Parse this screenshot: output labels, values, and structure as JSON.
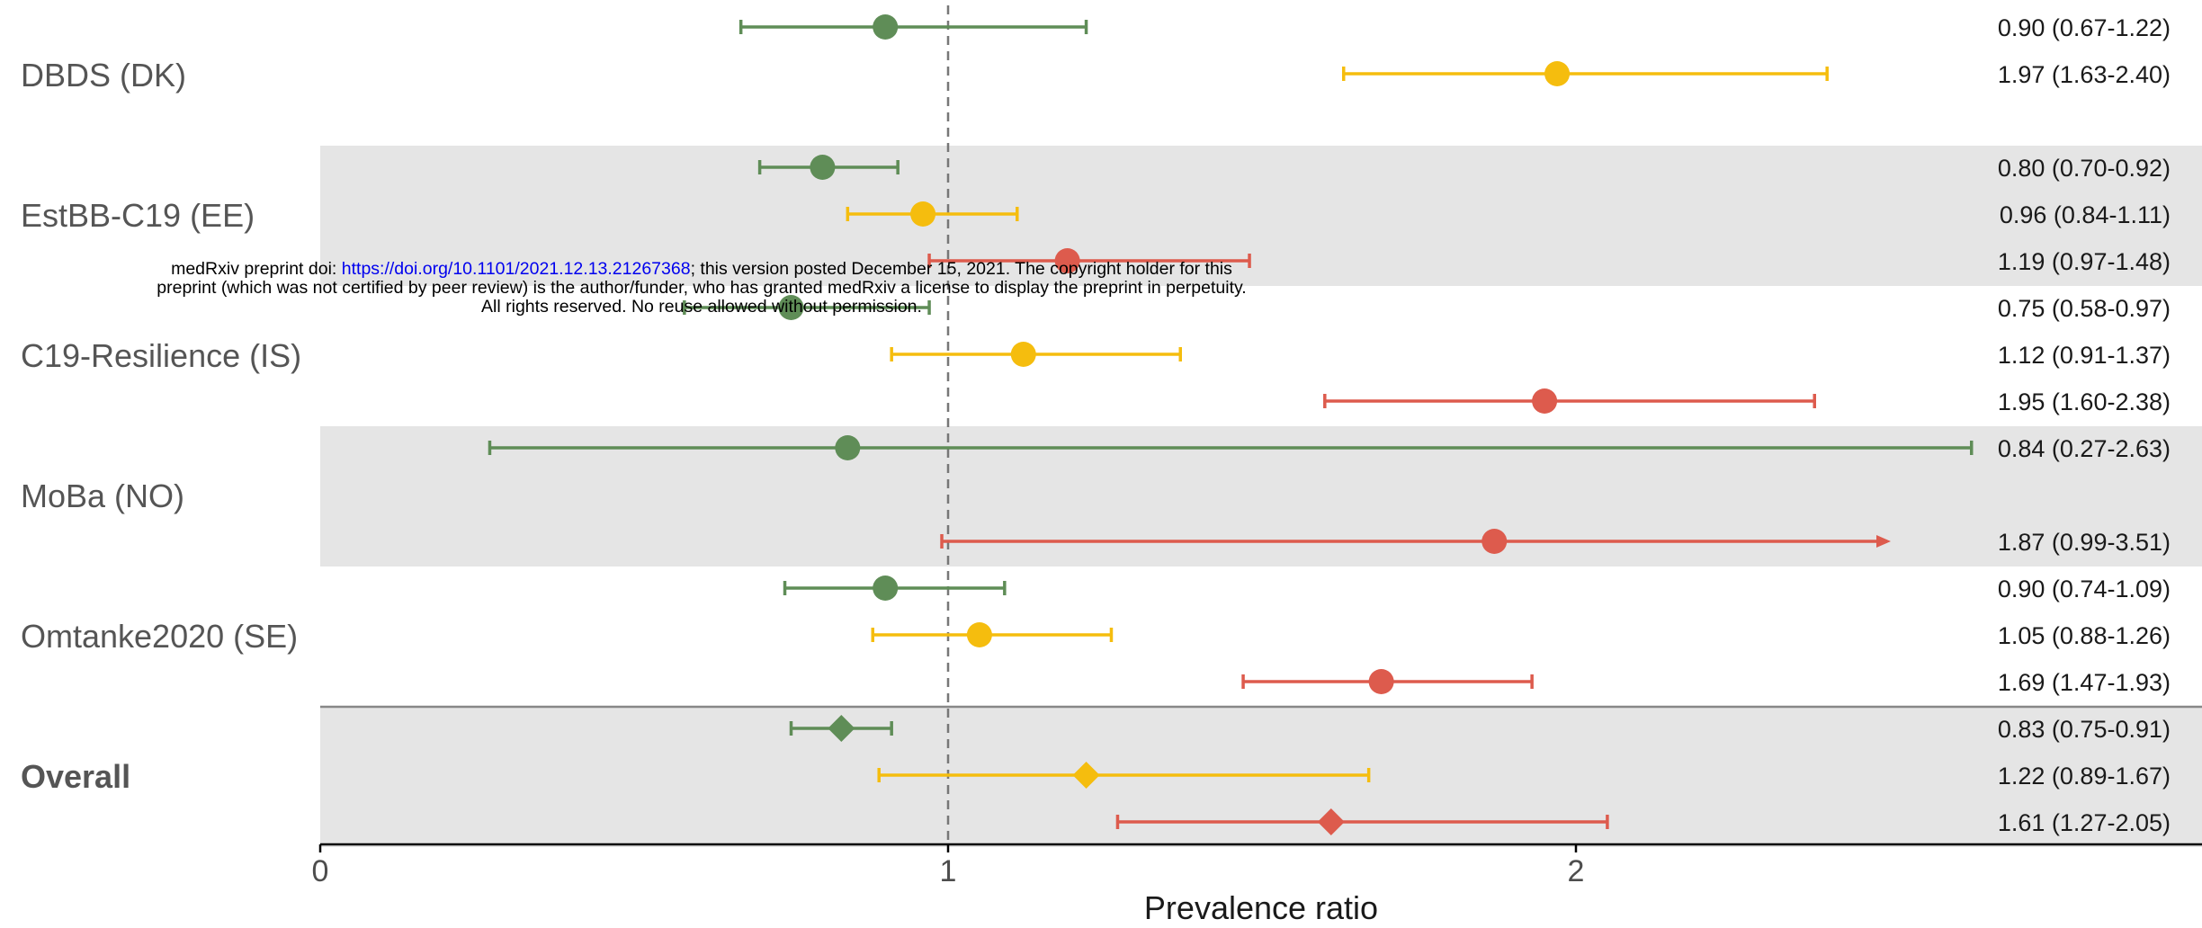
{
  "colors": {
    "green": "#5f8d57",
    "yellow": "#f5bd0e",
    "red": "#dd5b4d",
    "band": "#e5e5e5",
    "axis": "#000000",
    "reference": "#777777"
  },
  "chart_data": {
    "type": "forest",
    "xlabel": "Prevalence ratio",
    "xlim": [
      0,
      3
    ],
    "xticks": [
      0,
      1,
      2
    ],
    "reference_line": 1,
    "legend": "none",
    "cohorts": [
      {
        "name": "DBDS (DK)",
        "bold": false,
        "shaded": false,
        "rows": [
          {
            "color": "green",
            "est": 0.9,
            "lo": 0.67,
            "hi": 1.22,
            "label": "0.90 (0.67-1.22)"
          },
          {
            "color": "yellow",
            "est": 1.97,
            "lo": 1.63,
            "hi": 2.4,
            "label": "1.97 (1.63-2.40)"
          }
        ]
      },
      {
        "name": "EstBB-C19 (EE)",
        "bold": false,
        "shaded": true,
        "rows": [
          {
            "color": "green",
            "est": 0.8,
            "lo": 0.7,
            "hi": 0.92,
            "label": "0.80 (0.70-0.92)"
          },
          {
            "color": "yellow",
            "est": 0.96,
            "lo": 0.84,
            "hi": 1.11,
            "label": "0.96 (0.84-1.11)"
          },
          {
            "color": "red",
            "est": 1.19,
            "lo": 0.97,
            "hi": 1.48,
            "label": "1.19 (0.97-1.48)"
          }
        ]
      },
      {
        "name": "C19-Resilience (IS)",
        "bold": false,
        "shaded": false,
        "rows": [
          {
            "color": "green",
            "est": 0.75,
            "lo": 0.58,
            "hi": 0.97,
            "label": "0.75 (0.58-0.97)"
          },
          {
            "color": "yellow",
            "est": 1.12,
            "lo": 0.91,
            "hi": 1.37,
            "label": "1.12 (0.91-1.37)"
          },
          {
            "color": "red",
            "est": 1.95,
            "lo": 1.6,
            "hi": 2.38,
            "label": "1.95 (1.60-2.38)"
          }
        ]
      },
      {
        "name": "MoBa (NO)",
        "bold": false,
        "shaded": true,
        "rows": [
          {
            "color": "green",
            "est": 0.84,
            "lo": 0.27,
            "hi": 2.63,
            "label": "0.84 (0.27-2.63)",
            "arrow": true
          },
          {
            "color": "red",
            "est": 1.87,
            "lo": 0.99,
            "hi": 3.51,
            "label": "1.87 (0.99-3.51)",
            "arrow": true,
            "row": 2
          }
        ]
      },
      {
        "name": "Omtanke2020 (SE)",
        "bold": false,
        "shaded": false,
        "rows": [
          {
            "color": "green",
            "est": 0.9,
            "lo": 0.74,
            "hi": 1.09,
            "label": "0.90 (0.74-1.09)"
          },
          {
            "color": "yellow",
            "est": 1.05,
            "lo": 0.88,
            "hi": 1.26,
            "label": "1.05 (0.88-1.26)"
          },
          {
            "color": "red",
            "est": 1.69,
            "lo": 1.47,
            "hi": 1.93,
            "label": "1.69 (1.47-1.93)"
          }
        ]
      },
      {
        "name": "Overall",
        "bold": true,
        "shaded": true,
        "overall": true,
        "rows": [
          {
            "color": "green",
            "est": 0.83,
            "lo": 0.75,
            "hi": 0.91,
            "label": "0.83 (0.75-0.91)"
          },
          {
            "color": "yellow",
            "est": 1.22,
            "lo": 0.89,
            "hi": 1.67,
            "label": "1.22 (0.89-1.67)"
          },
          {
            "color": "red",
            "est": 1.61,
            "lo": 1.27,
            "hi": 2.05,
            "label": "1.61 (1.27-2.05)"
          }
        ]
      }
    ]
  },
  "watermark": {
    "prefix": "medRxiv preprint doi: ",
    "doi": "https://doi.org/10.1101/2021.12.13.21267368",
    "line1_suffix": "; this version posted December 15, 2021. The copyright holder for this",
    "line2": "preprint (which was not certified by peer review) is the author/funder, who has granted medRxiv a license to display the preprint in perpetuity.",
    "line3": "All rights reserved. No reuse allowed without permission."
  }
}
